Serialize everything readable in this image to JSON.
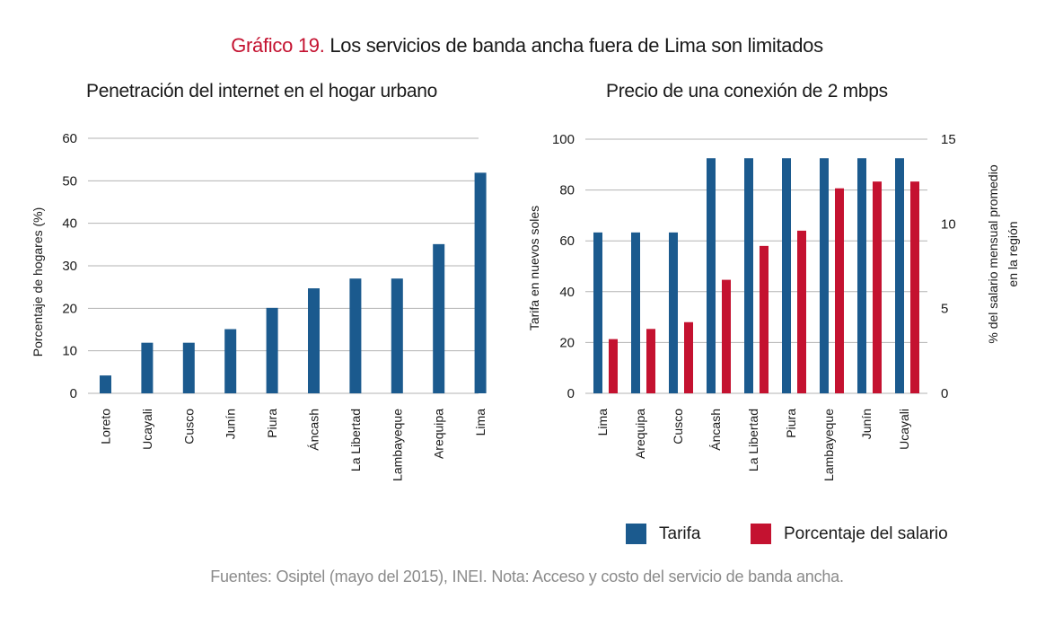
{
  "figure": {
    "title_number": "Gráfico 19.",
    "title_text": " Los servicios de banda ancha fuera de Lima son limitados",
    "source": "Fuentes: Osiptel (mayo del 2015), INEI. Nota: Acceso y costo del servicio de banda ancha."
  },
  "colors": {
    "blue": "#1b5a8e",
    "red": "#c41230",
    "grid": "#b3b3b3"
  },
  "chart_data": [
    {
      "type": "bar",
      "title": "Penetración del internet en el hogar urbano",
      "xlabel": "",
      "ylabel": "Porcentaje de hogares (%)",
      "ylim": [
        0,
        60
      ],
      "yticks": [
        0,
        10,
        20,
        30,
        40,
        50,
        60
      ],
      "grid": true,
      "categories": [
        "Loreto",
        "Ucayali",
        "Cusco",
        "Junín",
        "Piura",
        "Áncash",
        "La Libertad",
        "Lambayeque",
        "Arequipa",
        "Lima"
      ],
      "series": [
        {
          "name": "Penetración",
          "color": "#1b5a8e",
          "values": [
            4.2,
            11.9,
            11.9,
            15.1,
            20.1,
            24.7,
            27.0,
            27.0,
            35.1,
            51.9
          ]
        }
      ]
    },
    {
      "type": "bar",
      "title": "Precio de una conexión de 2 mbps",
      "xlabel": "",
      "ylabel": "Tarifa en nuevos soles",
      "ylabel_right": "% del salario mensual promedio en la región",
      "ylabel_right_lines": [
        "% del salario mensual promedio",
        "en la región"
      ],
      "ylim": [
        0,
        100
      ],
      "yticks": [
        0,
        20,
        40,
        60,
        80,
        100
      ],
      "ylim_right": [
        0,
        15
      ],
      "yticks_right": [
        0,
        5,
        10,
        15
      ],
      "grid": true,
      "legend": "bottom-right",
      "categories": [
        "Lima",
        "Arequipa",
        "Cusco",
        "Áncash",
        "La Libertad",
        "Piura",
        "Lambayeque",
        "Junín",
        "Ucayali"
      ],
      "series": [
        {
          "name": "Tarifa",
          "axis": "left",
          "color": "#1b5a8e",
          "values": [
            63.3,
            63.3,
            63.3,
            92.5,
            92.5,
            92.5,
            92.5,
            92.5,
            92.5
          ]
        },
        {
          "name": "Porcentaje del salario",
          "axis": "right",
          "color": "#c41230",
          "values": [
            3.2,
            3.8,
            4.2,
            6.7,
            8.7,
            9.6,
            12.1,
            12.5,
            12.5
          ]
        }
      ]
    }
  ]
}
